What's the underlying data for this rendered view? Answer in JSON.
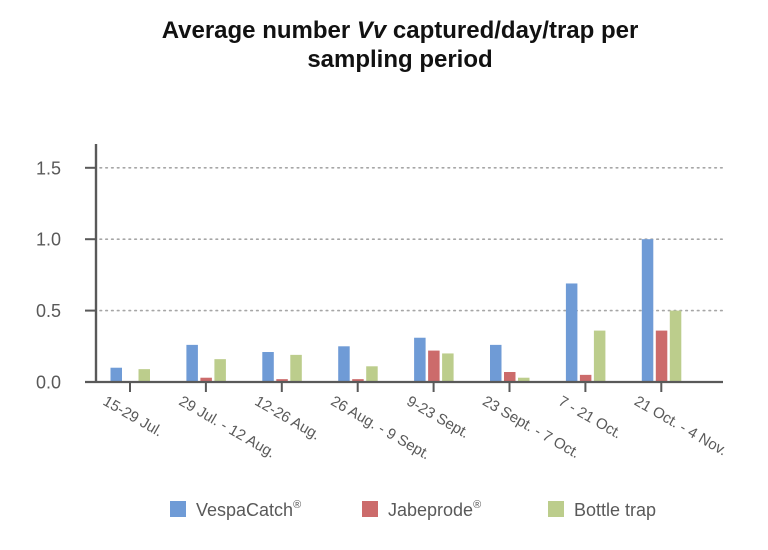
{
  "chart_data": {
    "type": "bar",
    "title": {
      "line1_pre": "Average number ",
      "line1_italic": "Vv",
      "line1_post": " captured/day/trap per",
      "line2": "sampling period",
      "full": "Average number Vv captured/day/trap per sampling period"
    },
    "xlabel": "",
    "ylabel": "",
    "ylim": [
      0,
      1.6
    ],
    "yticks": [
      0.0,
      0.5,
      1.0,
      1.5
    ],
    "ytick_labels": [
      "0.0",
      "0.5",
      "1.0",
      "1.5"
    ],
    "grid": "horizontal dotted",
    "categories": [
      "15-29 Jul.",
      "29 Jul. - 12 Aug.",
      "12-26 Aug.",
      "26 Aug. - 9 Sept.",
      "9-23 Sept.",
      "23 Sept. - 7 Oct.",
      "7 - 21 Oct.",
      "21 Oct. - 4 Nov."
    ],
    "series": [
      {
        "name": "VespaCatch",
        "sup": "®",
        "color": "#6f9bd6",
        "values": [
          0.1,
          0.26,
          0.21,
          0.25,
          0.31,
          0.26,
          0.69,
          1.0
        ]
      },
      {
        "name": "Jabeprode",
        "sup": "®",
        "color": "#cc6b6b",
        "values": [
          0.0,
          0.03,
          0.02,
          0.02,
          0.22,
          0.07,
          0.05,
          0.36
        ]
      },
      {
        "name": "Bottle trap",
        "sup": "",
        "color": "#bccd8c",
        "values": [
          0.09,
          0.16,
          0.19,
          0.11,
          0.2,
          0.03,
          0.36,
          0.5
        ]
      }
    ],
    "legend_position": "bottom"
  }
}
